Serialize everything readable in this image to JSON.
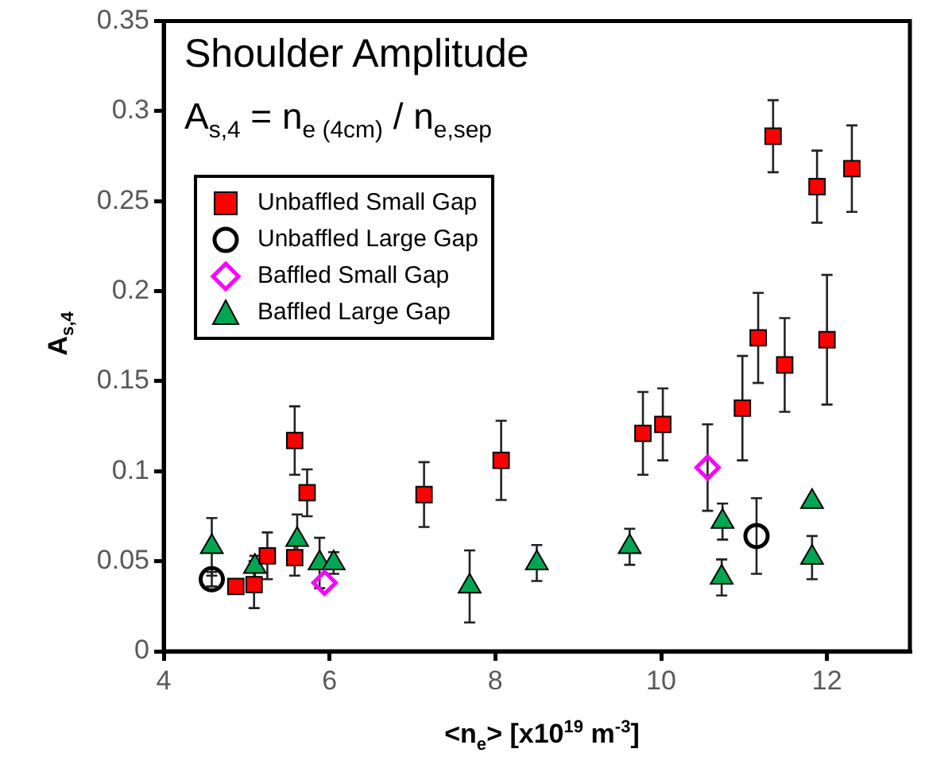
{
  "chart_data": {
    "type": "scatter",
    "xlabel": "<n$_{e}$> [x10$^{19}$ m$^{-3}$]",
    "ylabel": "A$_{s,4}$",
    "annotations": [
      "Shoulder Amplitude",
      "A$_{s,4}$ = n$_{e (4cm)}$ / n$_{e,sep}$"
    ],
    "xlim": [
      4,
      13
    ],
    "xticks": [
      4,
      6,
      8,
      10,
      12
    ],
    "ylim": [
      0,
      0.35
    ],
    "yticks": [
      0,
      0.05,
      0.1,
      0.15,
      0.2,
      0.25,
      0.3,
      0.35
    ],
    "grid": false,
    "legend": "top left",
    "series": [
      {
        "name": "Unbaffled Small Gap",
        "color": "#ff0000",
        "marker": "square",
        "x": [
          4.87,
          5.09,
          5.25,
          5.58,
          5.58,
          5.73,
          7.14,
          8.07,
          9.78,
          10.02,
          10.98,
          11.17,
          11.49,
          12.0,
          11.35,
          11.88,
          12.3
        ],
        "values": [
          0.036,
          0.037,
          0.053,
          0.052,
          0.117,
          0.088,
          0.087,
          0.106,
          0.121,
          0.126,
          0.135,
          0.174,
          0.159,
          0.173,
          0.286,
          0.258,
          0.268
        ],
        "errors": [
          null,
          0.013,
          0.013,
          0.01,
          0.019,
          0.013,
          0.018,
          0.022,
          0.023,
          0.02,
          0.029,
          0.025,
          0.026,
          0.036,
          0.02,
          0.02,
          0.024
        ]
      },
      {
        "name": "Unbaffled Large Gap",
        "color": "#000000",
        "marker": "circle",
        "x": [
          4.58,
          11.15
        ],
        "values": [
          0.04,
          0.064
        ],
        "errors": [
          0.004,
          0.021
        ]
      },
      {
        "name": "Baffled Small Gap",
        "color": "#ff00ff",
        "marker": "diamond",
        "x": [
          5.94,
          10.56
        ],
        "values": [
          0.038,
          0.102
        ],
        "errors": [
          null,
          0.024
        ]
      },
      {
        "name": "Baffled Large Gap",
        "color": "#00a651",
        "marker": "triangle",
        "x": [
          4.58,
          5.1,
          5.61,
          5.88,
          6.05,
          7.69,
          8.5,
          9.62,
          10.74,
          10.73,
          11.82,
          11.82
        ],
        "values": [
          0.058,
          0.047,
          0.062,
          0.049,
          0.049,
          0.036,
          0.049,
          0.058,
          0.072,
          0.041,
          0.083,
          0.052
        ],
        "errors": [
          0.016,
          0.006,
          0.014,
          0.014,
          0.006,
          0.02,
          0.01,
          0.01,
          0.01,
          0.01,
          null,
          0.012
        ]
      }
    ]
  }
}
